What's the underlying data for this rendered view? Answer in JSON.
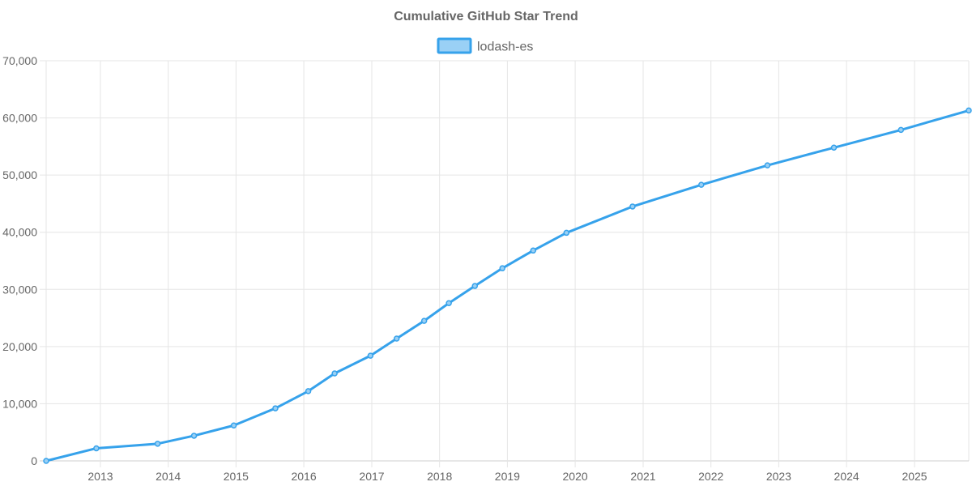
{
  "chart_data": {
    "type": "line",
    "title": "Cumulative GitHub Star Trend",
    "xlabel": "",
    "ylabel": "",
    "x_axis_type": "date",
    "xlim": [
      "2012-03-15",
      "2025-10-20"
    ],
    "ylim": [
      0,
      70000
    ],
    "y_ticks": [
      0,
      10000,
      20000,
      30000,
      40000,
      50000,
      60000,
      70000
    ],
    "y_tick_labels": [
      "0",
      "10,000",
      "20,000",
      "30,000",
      "40,000",
      "50,000",
      "60,000",
      "70,000"
    ],
    "x_ticks": [
      "2013-01-01",
      "2014-01-01",
      "2015-01-01",
      "2016-01-01",
      "2017-01-01",
      "2018-01-01",
      "2019-01-01",
      "2020-01-01",
      "2021-01-01",
      "2022-01-01",
      "2023-01-01",
      "2024-01-01",
      "2025-01-01"
    ],
    "x_tick_labels": [
      "2013",
      "2014",
      "2015",
      "2016",
      "2017",
      "2018",
      "2019",
      "2020",
      "2021",
      "2022",
      "2023",
      "2024",
      "2025"
    ],
    "grid": true,
    "legend_position": "top-center",
    "series": [
      {
        "name": "lodash-es",
        "color": "#36a2eb",
        "fill_color": "#9ad0f5",
        "points": [
          {
            "x": "2012-03-15",
            "y": 0
          },
          {
            "x": "2012-12-10",
            "y": 2200
          },
          {
            "x": "2013-11-05",
            "y": 3000
          },
          {
            "x": "2014-05-20",
            "y": 4400
          },
          {
            "x": "2014-12-20",
            "y": 6200
          },
          {
            "x": "2015-08-01",
            "y": 9200
          },
          {
            "x": "2016-01-25",
            "y": 12200
          },
          {
            "x": "2016-06-15",
            "y": 15300
          },
          {
            "x": "2016-12-25",
            "y": 18400
          },
          {
            "x": "2017-05-15",
            "y": 21400
          },
          {
            "x": "2017-10-10",
            "y": 24500
          },
          {
            "x": "2018-02-20",
            "y": 27600
          },
          {
            "x": "2018-07-10",
            "y": 30600
          },
          {
            "x": "2018-12-05",
            "y": 33700
          },
          {
            "x": "2019-05-20",
            "y": 36800
          },
          {
            "x": "2019-11-15",
            "y": 39900
          },
          {
            "x": "2020-11-05",
            "y": 44500
          },
          {
            "x": "2021-11-10",
            "y": 48300
          },
          {
            "x": "2022-11-01",
            "y": 51700
          },
          {
            "x": "2023-10-25",
            "y": 54800
          },
          {
            "x": "2024-10-20",
            "y": 57900
          },
          {
            "x": "2025-10-20",
            "y": 61300
          }
        ]
      }
    ]
  }
}
